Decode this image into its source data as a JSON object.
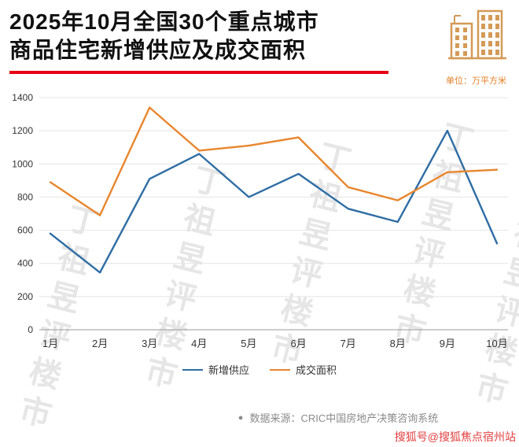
{
  "header": {
    "title_line1": "2025年10月全国30个重点城市",
    "title_line2": "商品住宅新增供应及成交面积",
    "unit_label": "单位：万平方米"
  },
  "colors": {
    "accent_red": "#e60012",
    "unit_orange": "#e0812a",
    "building_icon": "#d49a57",
    "sohu_red": "#e24040",
    "grid_line": "#e4e4e4",
    "axis_line": "#999999",
    "tick_text": "#333333"
  },
  "chart_data": {
    "type": "line",
    "categories": [
      "1月",
      "2月",
      "3月",
      "4月",
      "5月",
      "6月",
      "7月",
      "8月",
      "9月",
      "10月"
    ],
    "series": [
      {
        "name": "新增供应",
        "color": "#2e6da4",
        "values": [
          580,
          345,
          910,
          1060,
          800,
          940,
          730,
          650,
          1200,
          520
        ]
      },
      {
        "name": "成交面积",
        "color": "#e8862d",
        "values": [
          890,
          690,
          1340,
          1080,
          1110,
          1160,
          860,
          780,
          950,
          965
        ]
      }
    ],
    "ylim": [
      0,
      1400
    ],
    "ytick_interval": 200,
    "grid": true,
    "legend_position": "bottom",
    "title": "2025年10月全国30个重点城市商品住宅新增供应及成交面积",
    "ylabel_unit": "万平方米"
  },
  "watermark": {
    "text": "丁祖昱评楼市"
  },
  "footer": {
    "source_bullet": "●",
    "source_text": "数据来源：CRIC中国房地产决策咨询系统",
    "sohu_tag": "搜狐号@搜狐焦点宿州站"
  }
}
